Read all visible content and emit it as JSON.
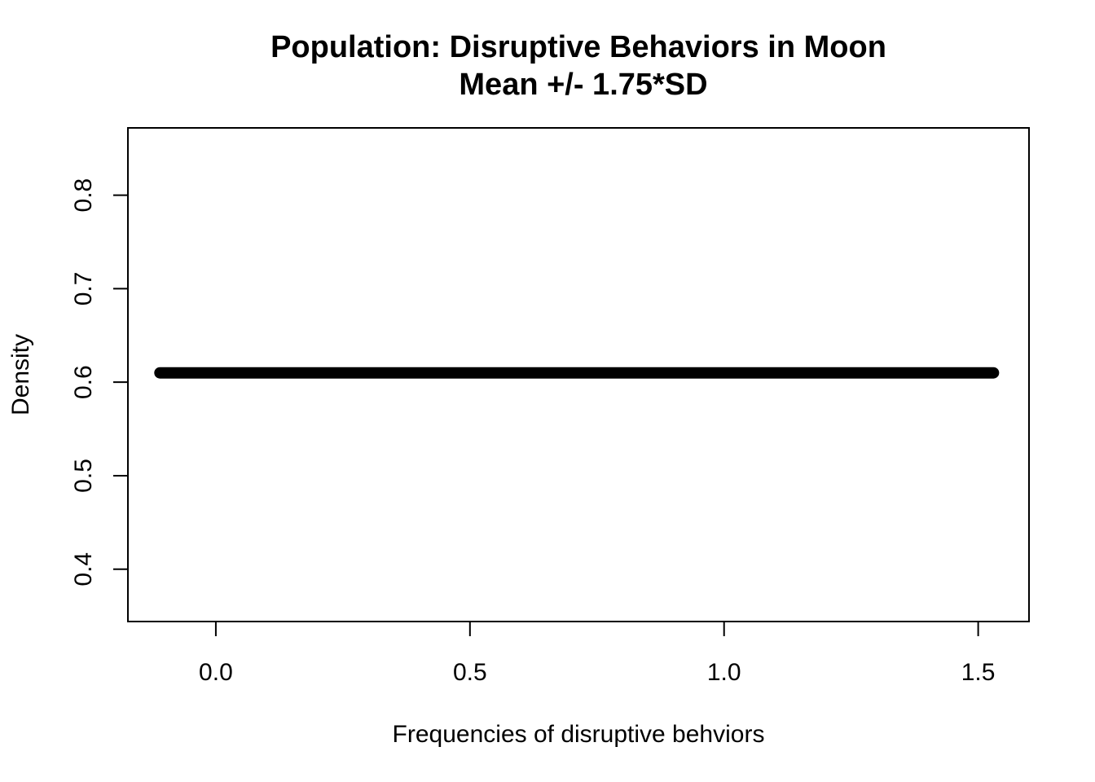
{
  "chart_data": {
    "type": "line",
    "title": "Population: Disruptive Behaviors in Moon",
    "subtitle": "Mean +/- 1.75*SD",
    "xlabel": "Frequencies of disruptive behviors",
    "ylabel": "Density",
    "xlim": [
      -0.173,
      1.6
    ],
    "ylim": [
      0.344,
      0.872
    ],
    "x_ticks": [
      0.0,
      0.5,
      1.0,
      1.5
    ],
    "x_tick_labels": [
      "0.0",
      "0.5",
      "1.0",
      "1.5"
    ],
    "y_ticks": [
      0.4,
      0.5,
      0.6,
      0.7,
      0.8
    ],
    "y_tick_labels": [
      "0.4",
      "0.5",
      "0.6",
      "0.7",
      "0.8"
    ],
    "series": [
      {
        "x": [
          -0.11,
          1.53
        ],
        "y": [
          0.61,
          0.61
        ],
        "color": "#000000"
      }
    ],
    "grid": false,
    "legend": "none"
  }
}
